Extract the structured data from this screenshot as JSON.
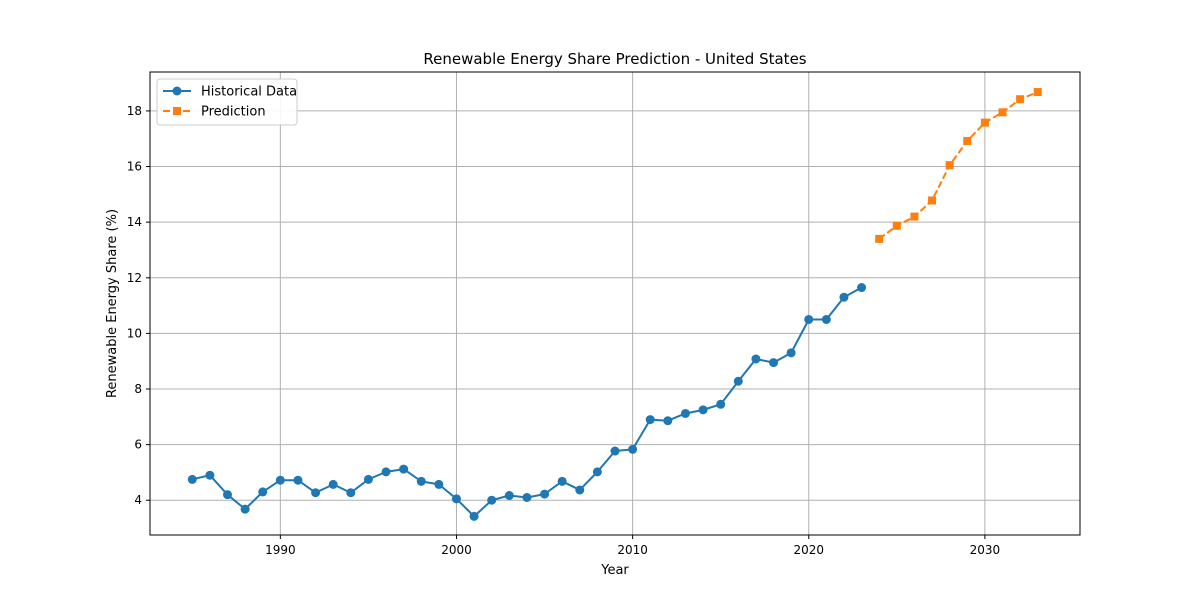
{
  "chart_data": {
    "type": "line",
    "title": "Renewable Energy Share Prediction - United States",
    "xlabel": "Year",
    "ylabel": "Renewable Energy Share (%)",
    "xlim": [
      1982.6,
      2035.4
    ],
    "ylim": [
      2.75,
      19.4
    ],
    "xticks": [
      1990,
      2000,
      2010,
      2020,
      2030
    ],
    "yticks": [
      4,
      6,
      8,
      10,
      12,
      14,
      16,
      18
    ],
    "grid": true,
    "legend_position": "top-left",
    "series": [
      {
        "name": "Historical Data",
        "color": "#1f77b4",
        "marker": "circle",
        "line_style": "solid",
        "x": [
          1985,
          1986,
          1987,
          1988,
          1989,
          1990,
          1991,
          1992,
          1993,
          1994,
          1995,
          1996,
          1997,
          1998,
          1999,
          2000,
          2001,
          2002,
          2003,
          2004,
          2005,
          2006,
          2007,
          2008,
          2009,
          2010,
          2011,
          2012,
          2013,
          2014,
          2015,
          2016,
          2017,
          2018,
          2019,
          2020,
          2021,
          2022,
          2023
        ],
        "y": [
          4.75,
          4.9,
          4.2,
          3.68,
          4.3,
          4.72,
          4.72,
          4.27,
          4.57,
          4.27,
          4.75,
          5.02,
          5.12,
          4.68,
          4.57,
          4.05,
          3.42,
          4.0,
          4.17,
          4.1,
          4.22,
          4.68,
          4.37,
          5.02,
          5.77,
          5.83,
          6.9,
          6.86,
          7.12,
          7.25,
          7.45,
          8.28,
          9.08,
          8.95,
          9.3,
          10.5,
          10.5,
          11.3,
          11.65
        ]
      },
      {
        "name": "Prediction",
        "color": "#ff7f0e",
        "marker": "square",
        "line_style": "dashed",
        "x": [
          2024,
          2025,
          2026,
          2027,
          2028,
          2029,
          2030,
          2031,
          2032,
          2033
        ],
        "y": [
          13.4,
          13.87,
          14.2,
          14.78,
          16.05,
          16.92,
          17.58,
          17.95,
          18.42,
          18.68
        ]
      }
    ]
  }
}
